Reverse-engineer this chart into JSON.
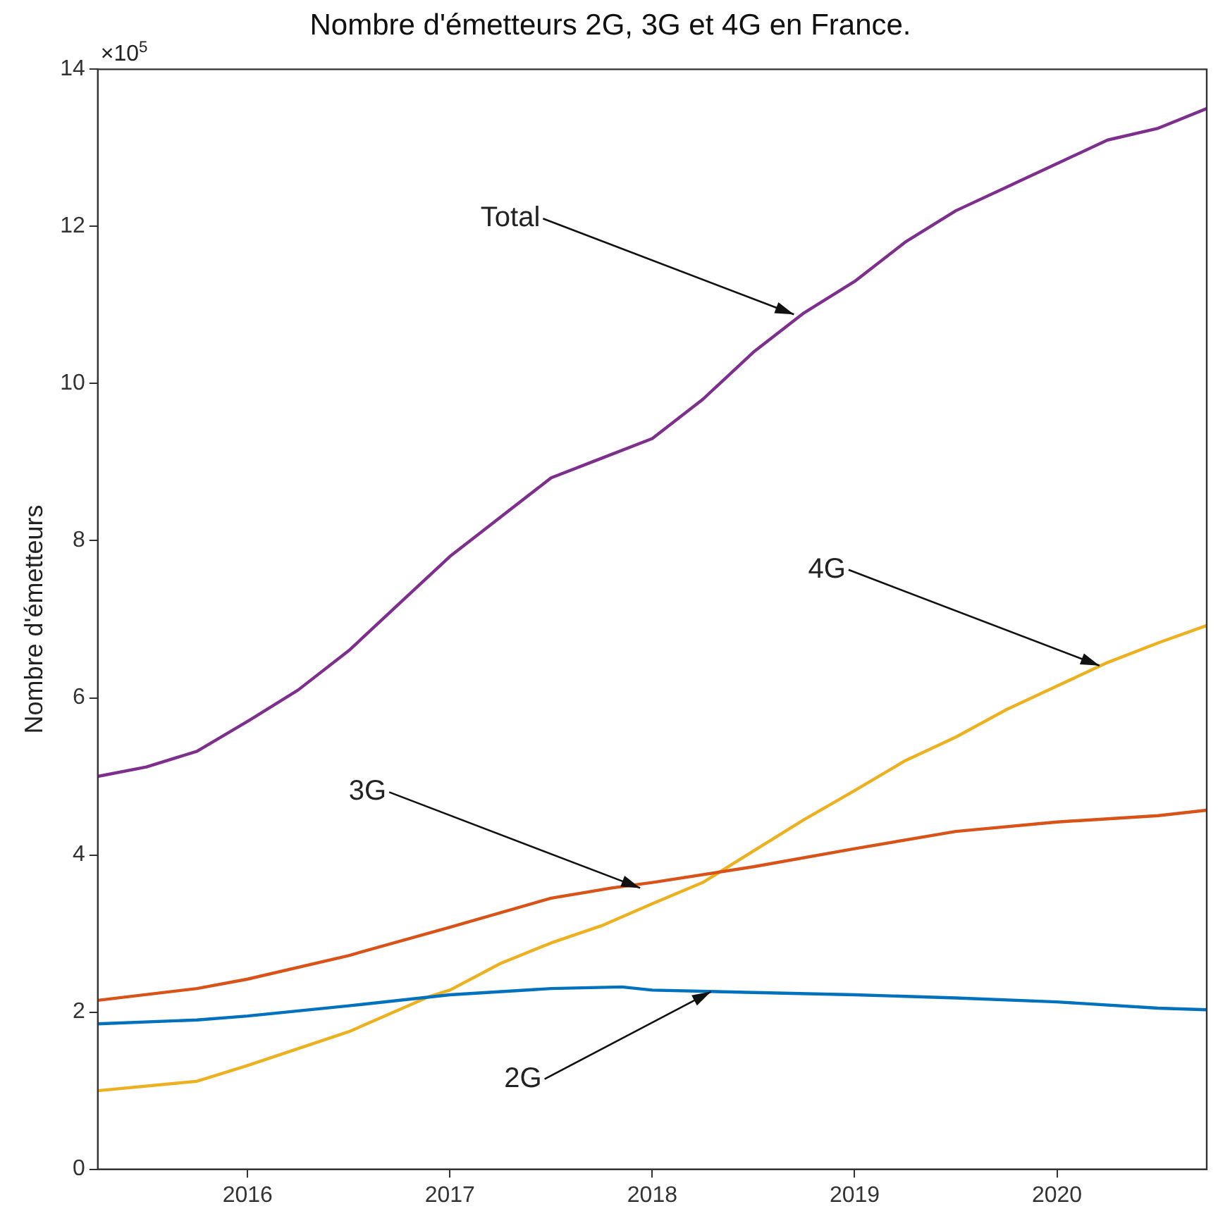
{
  "chart_data": {
    "type": "line",
    "title": "Nombre d'émetteurs 2G, 3G et 4G en France.",
    "ylabel": "Nombre d'émetteurs",
    "xlim": [
      2015.26,
      2020.74
    ],
    "xticks": [
      2016,
      2017,
      2018,
      2019,
      2020
    ],
    "ylim": [
      0,
      14
    ],
    "yticks": [
      0,
      2,
      4,
      6,
      8,
      10,
      12,
      14
    ],
    "grid": false,
    "legend": false,
    "marker": "none",
    "line_style": "solid",
    "annotations": [
      "×10$^{5}$",
      {
        "text": "Total",
        "x": 2018.7,
        "y": 10.88
      },
      {
        "text": "4G",
        "x": 2020.21,
        "y": 6.41
      },
      {
        "text": "3G",
        "x": 2017.94,
        "y": 3.58
      },
      {
        "text": "2G",
        "x": 2018.29,
        "y": 2.26
      }
    ],
    "series": [
      {
        "color": "#0072bd",
        "x": [
          2015.26,
          2015.75,
          2016,
          2016.5,
          2017,
          2017.5,
          2017.85,
          2018,
          2018.5,
          2019,
          2019.5,
          2020,
          2020.5,
          2020.74
        ],
        "values": [
          1.85,
          1.9,
          1.95,
          2.08,
          2.22,
          2.3,
          2.32,
          2.28,
          2.25,
          2.22,
          2.18,
          2.13,
          2.05,
          2.03
        ]
      },
      {
        "color": "#d95319",
        "x": [
          2015.26,
          2015.75,
          2016,
          2016.5,
          2017,
          2017.5,
          2017.8,
          2018,
          2018.5,
          2019,
          2019.5,
          2020,
          2020.5,
          2020.74
        ],
        "values": [
          2.15,
          2.3,
          2.42,
          2.72,
          3.08,
          3.45,
          3.58,
          3.65,
          3.85,
          4.08,
          4.3,
          4.42,
          4.5,
          4.57
        ]
      },
      {
        "color": "#edb120",
        "x": [
          2015.26,
          2015.75,
          2016,
          2016.5,
          2016.9,
          2017,
          2017.25,
          2017.5,
          2017.75,
          2018,
          2018.25,
          2018.5,
          2018.75,
          2019,
          2019.25,
          2019.5,
          2019.75,
          2020,
          2020.25,
          2020.5,
          2020.74
        ],
        "values": [
          1.0,
          1.12,
          1.32,
          1.75,
          2.2,
          2.28,
          2.62,
          2.88,
          3.1,
          3.38,
          3.65,
          4.05,
          4.45,
          4.82,
          5.2,
          5.5,
          5.85,
          6.15,
          6.45,
          6.7,
          6.92
        ]
      },
      {
        "color": "#7e2f8e",
        "x": [
          2015.26,
          2015.5,
          2015.75,
          2016,
          2016.25,
          2016.5,
          2016.75,
          2017,
          2017.25,
          2017.5,
          2017.75,
          2018,
          2018.25,
          2018.5,
          2018.75,
          2019,
          2019.25,
          2019.5,
          2019.75,
          2020,
          2020.25,
          2020.5,
          2020.74
        ],
        "values": [
          5.0,
          5.12,
          5.32,
          5.7,
          6.1,
          6.6,
          7.2,
          7.8,
          8.3,
          8.8,
          9.05,
          9.3,
          9.8,
          10.4,
          10.9,
          11.3,
          11.8,
          12.2,
          12.5,
          12.8,
          13.1,
          13.25,
          13.5
        ]
      }
    ]
  }
}
